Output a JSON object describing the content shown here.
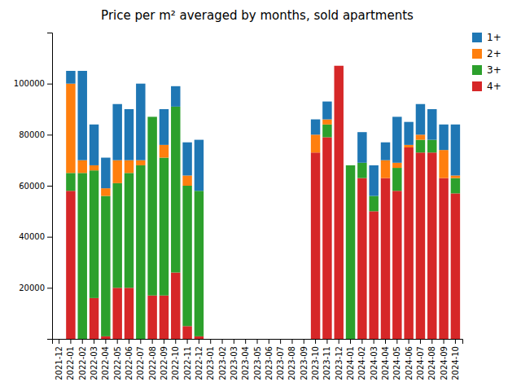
{
  "chart_data": {
    "type": "bar",
    "title": "Price per m² averaged by months, sold apartments",
    "categories": [
      "2021-12",
      "2022-01",
      "2022-02",
      "2022-03",
      "2022-04",
      "2022-05",
      "2022-06",
      "2022-07",
      "2022-08",
      "2022-09",
      "2022-10",
      "2022-11",
      "2022-12",
      "2023-01",
      "2023-02",
      "2023-03",
      "2023-04",
      "2023-05",
      "2023-06",
      "2023-07",
      "2023-08",
      "2023-09",
      "2023-10",
      "2023-11",
      "2023-12",
      "2024-01",
      "2024-02",
      "2024-03",
      "2024-04",
      "2024-05",
      "2024-06",
      "2024-07",
      "2024-08",
      "2024-09",
      "2024-10"
    ],
    "series": [
      {
        "name": "4+",
        "color": "#d62728",
        "values": [
          0,
          58000,
          0,
          16000,
          1000,
          20000,
          20000,
          0,
          17000,
          17000,
          26000,
          5000,
          1000,
          0,
          0,
          0,
          0,
          0,
          0,
          0,
          0,
          0,
          73000,
          79000,
          107000,
          0,
          63000,
          50000,
          63000,
          58000,
          75000,
          73000,
          73000,
          63000,
          57000
        ]
      },
      {
        "name": "3+",
        "color": "#2ca02c",
        "values": [
          0,
          7000,
          65000,
          50000,
          55000,
          41000,
          45000,
          68000,
          70000,
          54000,
          65000,
          55000,
          57000,
          0,
          0,
          0,
          0,
          0,
          0,
          0,
          0,
          0,
          0,
          5000,
          0,
          68000,
          6000,
          6000,
          0,
          9000,
          0,
          5000,
          5000,
          0,
          6000
        ]
      },
      {
        "name": "2+",
        "color": "#ff7f0e",
        "values": [
          0,
          35000,
          5000,
          2000,
          3000,
          9000,
          5000,
          2000,
          0,
          5000,
          0,
          4000,
          0,
          0,
          0,
          0,
          0,
          0,
          0,
          0,
          0,
          0,
          7000,
          2000,
          0,
          0,
          0,
          0,
          7000,
          2000,
          1000,
          2000,
          0,
          11000,
          1000
        ]
      },
      {
        "name": "1+",
        "color": "#1f77b4",
        "values": [
          0,
          5000,
          35000,
          16000,
          12000,
          22000,
          20000,
          30000,
          0,
          14000,
          8000,
          13000,
          20000,
          0,
          0,
          0,
          0,
          0,
          0,
          0,
          0,
          0,
          6000,
          7000,
          0,
          0,
          12000,
          12000,
          7000,
          18000,
          9000,
          12000,
          12000,
          10000,
          20000
        ]
      }
    ],
    "ylim": [
      0,
      120000
    ],
    "yticks": [
      20000,
      40000,
      60000,
      80000,
      100000
    ],
    "stacked": true,
    "grid": false,
    "legend": "upper right"
  }
}
